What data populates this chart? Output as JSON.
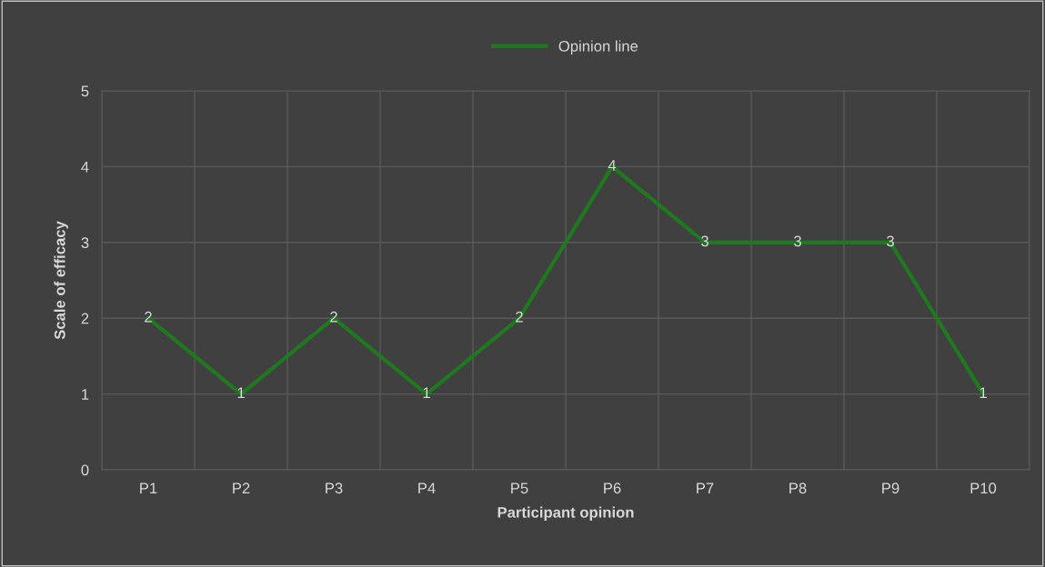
{
  "chart_data": {
    "type": "line",
    "xlabel": "Participant opinion",
    "ylabel": "Scale of efficacy",
    "categories": [
      "P1",
      "P2",
      "P3",
      "P4",
      "P5",
      "P6",
      "P7",
      "P8",
      "P9",
      "P10"
    ],
    "series": [
      {
        "name": "Opinion line",
        "color": "#1f7a1f",
        "values": [
          2,
          1,
          2,
          1,
          2,
          4,
          3,
          3,
          3,
          1
        ]
      }
    ],
    "ylim": [
      0,
      5
    ],
    "yticks": [
      0,
      1,
      2,
      3,
      4,
      5
    ],
    "grid": true,
    "legend": "top",
    "data_labels": true,
    "marker": "none",
    "line_style": "solid"
  }
}
